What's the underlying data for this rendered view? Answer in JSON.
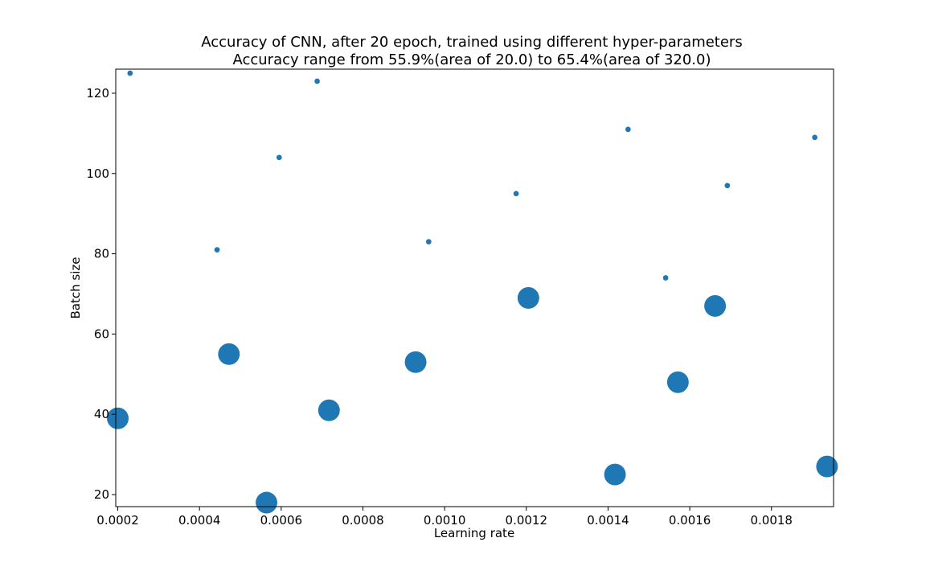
{
  "chart_data": {
    "type": "scatter",
    "title_lines": [
      "Accuracy of CNN, after 20 epoch, trained using different hyper-parameters",
      "Accuracy range from 55.9%(area of 20.0) to 65.4%(area of 320.0)"
    ],
    "xlabel": "Learning rate",
    "ylabel": "Batch size",
    "xlim": [
      0.000195,
      0.001952
    ],
    "ylim": [
      17,
      126
    ],
    "xticks": [
      0.0002,
      0.0004,
      0.0006,
      0.0008,
      0.001,
      0.0012,
      0.0014,
      0.0016,
      0.0018
    ],
    "xtick_labels": [
      "0.0002",
      "0.0004",
      "0.0006",
      "0.0008",
      "0.0010",
      "0.0012",
      "0.0014",
      "0.0016",
      "0.0018"
    ],
    "yticks": [
      20,
      40,
      60,
      80,
      100,
      120
    ],
    "ytick_labels": [
      "20",
      "40",
      "60",
      "80",
      "100",
      "120"
    ],
    "grid": false,
    "color": "#1f77b4",
    "points": [
      {
        "x": 0.0002,
        "y": 39,
        "area": 320
      },
      {
        "x": 0.00023,
        "y": 125,
        "area": 20
      },
      {
        "x": 0.000443,
        "y": 81,
        "area": 20
      },
      {
        "x": 0.000472,
        "y": 55,
        "area": 320
      },
      {
        "x": 0.000564,
        "y": 18,
        "area": 320
      },
      {
        "x": 0.000595,
        "y": 104,
        "area": 20
      },
      {
        "x": 0.000688,
        "y": 123,
        "area": 20
      },
      {
        "x": 0.000717,
        "y": 41,
        "area": 320
      },
      {
        "x": 0.000929,
        "y": 53,
        "area": 320
      },
      {
        "x": 0.000961,
        "y": 83,
        "area": 20
      },
      {
        "x": 0.001175,
        "y": 95,
        "area": 20
      },
      {
        "x": 0.001205,
        "y": 69,
        "area": 320
      },
      {
        "x": 0.001417,
        "y": 25,
        "area": 320
      },
      {
        "x": 0.001449,
        "y": 111,
        "area": 20
      },
      {
        "x": 0.001541,
        "y": 74,
        "area": 20
      },
      {
        "x": 0.001571,
        "y": 48,
        "area": 320
      },
      {
        "x": 0.001662,
        "y": 67,
        "area": 320
      },
      {
        "x": 0.001692,
        "y": 97,
        "area": 20
      },
      {
        "x": 0.001906,
        "y": 109,
        "area": 20
      },
      {
        "x": 0.001936,
        "y": 27,
        "area": 320
      }
    ]
  }
}
